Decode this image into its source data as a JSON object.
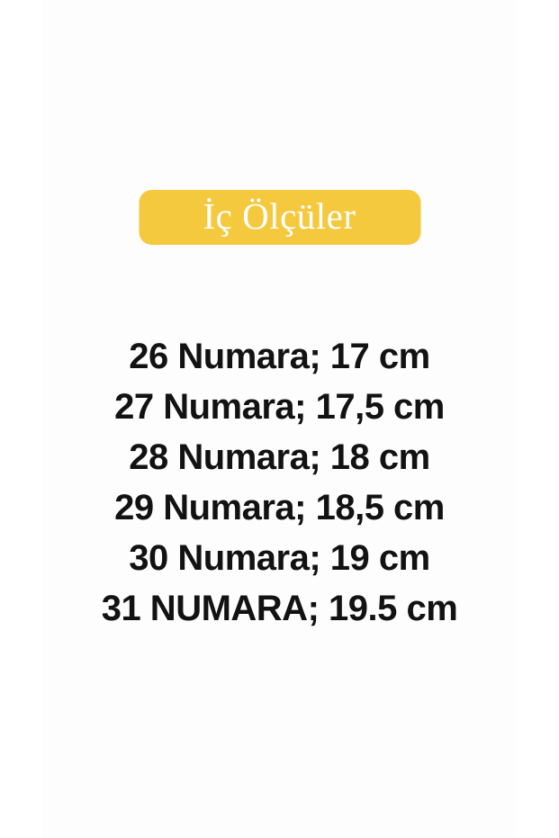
{
  "page": {
    "background_color": "#ffffff",
    "photo_panel_color": "#fdfdfe"
  },
  "badge": {
    "label": "İç Ölçüler",
    "background_color": "#f5c93e",
    "text_color": "#ffffff"
  },
  "size_list": {
    "text_color": "#121212",
    "items": [
      "26 Numara; 17 cm",
      "27 Numara; 17,5 cm",
      "28 Numara; 18 cm",
      "29 Numara; 18,5 cm",
      "30 Numara; 19 cm",
      "31 NUMARA; 19.5 cm"
    ]
  }
}
